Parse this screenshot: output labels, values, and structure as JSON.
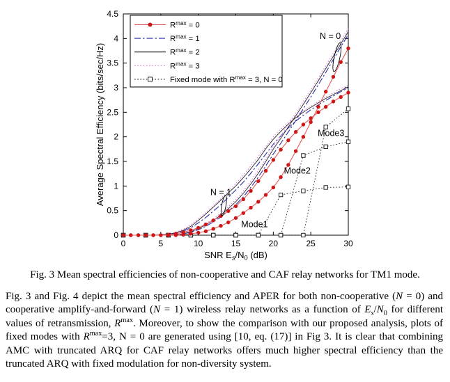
{
  "figure": {
    "caption": "Fig. 3 Mean spectral efficiencies of non-cooperative and CAF relay networks for TM1 mode."
  },
  "body_text": {
    "segments": [
      {
        "t": "Fig. 3 and Fig. 4 depict the mean spectral efficiency and APER for both non-cooperative ("
      },
      {
        "t": "N",
        "i": true
      },
      {
        "t": " = 0) and cooperative amplify-and-forward ("
      },
      {
        "t": "N",
        "i": true
      },
      {
        "t": " = 1) wireless relay networks as a function of "
      },
      {
        "t": "E",
        "i": true
      },
      {
        "t": "s",
        "sub": true,
        "i": true
      },
      {
        "t": "/"
      },
      {
        "t": "N",
        "i": true
      },
      {
        "t": "0",
        "sub": true
      },
      {
        "t": " for different values of retransmission, "
      },
      {
        "t": "R",
        "i": true
      },
      {
        "t": "max",
        "sup": true
      },
      {
        "t": ". Moreover, to show the comparison with our proposed analysis, plots of fixed modes with "
      },
      {
        "t": "R",
        "i": true
      },
      {
        "t": "max",
        "sup": true
      },
      {
        "t": "=3, N = 0 are generated using [10, eq. (17)] in Fig 3. It is clear that combining AMC with truncated ARQ for CAF relay networks offers much higher spectral efficiency than the truncated ARQ with fixed modulation for non-diversity system."
      }
    ]
  },
  "chart_data": {
    "type": "line",
    "title": "",
    "ylabel": "Average Spectral Efficiency (bits/sec/Hz)",
    "xlabel_segments": [
      {
        "t": "SNR E"
      },
      {
        "t": "s",
        "sub": true,
        "i": true
      },
      {
        "t": "/N"
      },
      {
        "t": "0",
        "sub": true
      },
      {
        "t": " (dB)"
      }
    ],
    "xlim": [
      0,
      30
    ],
    "ylim": [
      0,
      4.5
    ],
    "xticks": [
      0,
      5,
      10,
      15,
      20,
      25,
      30
    ],
    "yticks": [
      0,
      0.5,
      1,
      1.5,
      2,
      2.5,
      3,
      3.5,
      4,
      4.5
    ],
    "grid": false,
    "legend_position": "top-left",
    "colors": {
      "rmax0_line": "#e25b5b",
      "rmax0_marker": "#cf1616",
      "rmax1": "#2b2aa6",
      "rmax2": "#1c1c1c",
      "rmax3": "#df7bdf",
      "fixed": "#1c1c1c"
    },
    "legend": [
      {
        "segments": [
          {
            "t": "R"
          },
          {
            "t": "max",
            "sup": true
          },
          {
            "t": " = 0"
          }
        ],
        "color": "#e25b5b",
        "dash": "solid",
        "marker": "dot",
        "marker_color": "#cf1616"
      },
      {
        "segments": [
          {
            "t": "R"
          },
          {
            "t": "max",
            "sup": true
          },
          {
            "t": " = 1"
          }
        ],
        "color": "#2b2aa6",
        "dash": "dashdot",
        "marker": "none"
      },
      {
        "segments": [
          {
            "t": "R"
          },
          {
            "t": "max",
            "sup": true
          },
          {
            "t": " = 2"
          }
        ],
        "color": "#1c1c1c",
        "dash": "solid",
        "marker": "none"
      },
      {
        "segments": [
          {
            "t": "R"
          },
          {
            "t": "max",
            "sup": true
          },
          {
            "t": " = 3"
          }
        ],
        "color": "#df7bdf",
        "dash": "dotted",
        "marker": "none"
      },
      {
        "segments": [
          {
            "t": "Fixed mode with R"
          },
          {
            "t": "max",
            "sup": true
          },
          {
            "t": " = 3, N = 0"
          }
        ],
        "color": "#1c1c1c",
        "dash": "dotted",
        "marker": "square",
        "marker_color": "#ffffff"
      }
    ],
    "series": [
      {
        "name": "rmax1-n1",
        "label": "Rmax = 1, N = 1",
        "color": "#2b2aa6",
        "dash": "dashdot",
        "marker": "none",
        "width": 1.1,
        "x": [
          0,
          1,
          2,
          3,
          4,
          5,
          6,
          7,
          8,
          9,
          10,
          11,
          12,
          13,
          14,
          15,
          16,
          17,
          18,
          19,
          20,
          21,
          22,
          23,
          24,
          25,
          26,
          27,
          28,
          29,
          30
        ],
        "y": [
          0,
          0,
          0,
          0,
          0,
          0,
          0.02,
          0.04,
          0.08,
          0.15,
          0.25,
          0.36,
          0.49,
          0.62,
          0.77,
          0.92,
          1.08,
          1.26,
          1.45,
          1.65,
          1.85,
          2.02,
          2.18,
          2.32,
          2.44,
          2.55,
          2.65,
          2.74,
          2.83,
          2.92,
          3.0
        ]
      },
      {
        "name": "rmax2-n1",
        "label": "Rmax = 2, N = 1",
        "color": "#1c1c1c",
        "dash": "solid",
        "marker": "none",
        "width": 0.85,
        "x": [
          0,
          1,
          2,
          3,
          4,
          5,
          6,
          7,
          8,
          9,
          10,
          11,
          12,
          13,
          14,
          15,
          16,
          17,
          18,
          19,
          20,
          21,
          22,
          23,
          24,
          25,
          26,
          27,
          28,
          29,
          30
        ],
        "y": [
          0,
          0,
          0,
          0,
          0,
          0.01,
          0.02,
          0.05,
          0.1,
          0.18,
          0.3,
          0.43,
          0.57,
          0.71,
          0.86,
          1.0,
          1.17,
          1.35,
          1.54,
          1.76,
          1.95,
          2.11,
          2.26,
          2.39,
          2.5,
          2.6,
          2.69,
          2.78,
          2.86,
          2.94,
          3.02
        ]
      },
      {
        "name": "rmax3-n1",
        "label": "Rmax = 3, N = 1",
        "color": "#df7bdf",
        "dash": "dotted",
        "marker": "none",
        "width": 1.1,
        "x": [
          0,
          1,
          2,
          3,
          4,
          5,
          6,
          7,
          8,
          9,
          10,
          11,
          12,
          13,
          14,
          15,
          16,
          17,
          18,
          19,
          20,
          21,
          22,
          23,
          24,
          25,
          26,
          27,
          28,
          29,
          30
        ],
        "y": [
          0,
          0,
          0,
          0,
          0,
          0.01,
          0.03,
          0.06,
          0.12,
          0.21,
          0.33,
          0.46,
          0.6,
          0.74,
          0.89,
          1.05,
          1.22,
          1.41,
          1.6,
          1.8,
          2.0,
          2.16,
          2.3,
          2.43,
          2.53,
          2.62,
          2.72,
          2.81,
          2.9,
          2.98,
          3.05
        ]
      },
      {
        "name": "rmax1-n0",
        "label": "Rmax = 1, N = 0",
        "color": "#2b2aa6",
        "dash": "dashdot",
        "marker": "none",
        "width": 1.1,
        "x": [
          0,
          1,
          2,
          3,
          4,
          5,
          6,
          7,
          8,
          9,
          10,
          11,
          12,
          13,
          14,
          15,
          16,
          17,
          18,
          19,
          20,
          21,
          22,
          23,
          24,
          25,
          26,
          27,
          28,
          29,
          30
        ],
        "y": [
          0,
          0,
          0,
          0,
          0,
          0,
          0,
          0.01,
          0.03,
          0.06,
          0.11,
          0.18,
          0.27,
          0.37,
          0.49,
          0.62,
          0.78,
          0.97,
          1.18,
          1.41,
          1.65,
          1.87,
          2.1,
          2.33,
          2.57,
          2.81,
          3.06,
          3.31,
          3.57,
          3.83,
          4.08
        ]
      },
      {
        "name": "rmax2-n0",
        "label": "Rmax = 2, N = 0",
        "color": "#1c1c1c",
        "dash": "solid",
        "marker": "none",
        "width": 0.85,
        "x": [
          0,
          1,
          2,
          3,
          4,
          5,
          6,
          7,
          8,
          9,
          10,
          11,
          12,
          13,
          14,
          15,
          16,
          17,
          18,
          19,
          20,
          21,
          22,
          23,
          24,
          25,
          26,
          27,
          28,
          29,
          30
        ],
        "y": [
          0,
          0,
          0,
          0,
          0,
          0,
          0,
          0.01,
          0.03,
          0.07,
          0.13,
          0.21,
          0.3,
          0.41,
          0.54,
          0.68,
          0.85,
          1.04,
          1.26,
          1.5,
          1.75,
          1.97,
          2.2,
          2.43,
          2.66,
          2.9,
          3.14,
          3.39,
          3.64,
          3.89,
          4.14
        ]
      },
      {
        "name": "rmax3-n0",
        "label": "Rmax = 3, N = 0",
        "color": "#df7bdf",
        "dash": "dotted",
        "marker": "none",
        "width": 1.1,
        "x": [
          0,
          1,
          2,
          3,
          4,
          5,
          6,
          7,
          8,
          9,
          10,
          11,
          12,
          13,
          14,
          15,
          16,
          17,
          18,
          19,
          20,
          21,
          22,
          23,
          24,
          25,
          26,
          27,
          28,
          29,
          30
        ],
        "y": [
          0,
          0,
          0,
          0,
          0,
          0,
          0,
          0.01,
          0.04,
          0.08,
          0.15,
          0.23,
          0.33,
          0.45,
          0.58,
          0.72,
          0.9,
          1.1,
          1.32,
          1.55,
          1.8,
          2.02,
          2.25,
          2.48,
          2.72,
          2.95,
          3.2,
          3.45,
          3.7,
          3.95,
          4.2
        ]
      },
      {
        "name": "fixed-mode1",
        "label": "Fixed Mode1",
        "color": "#1c1c1c",
        "dash": "dotted",
        "marker": "square",
        "width": 0.9,
        "x": [
          0,
          3,
          6,
          9,
          12,
          15,
          18,
          21,
          24,
          27,
          30
        ],
        "y": [
          0,
          0,
          0,
          0,
          0,
          0,
          0,
          0.82,
          0.9,
          0.97,
          0.98
        ]
      },
      {
        "name": "fixed-mode2",
        "label": "Fixed Mode2",
        "color": "#1c1c1c",
        "dash": "dotted",
        "marker": "square",
        "width": 0.9,
        "x": [
          0,
          3,
          6,
          9,
          12,
          15,
          18,
          21,
          24,
          27,
          30
        ],
        "y": [
          0,
          0,
          0,
          0,
          0,
          0,
          0,
          0,
          1.62,
          1.8,
          1.9
        ]
      },
      {
        "name": "fixed-mode3",
        "label": "Fixed Mode3",
        "color": "#1c1c1c",
        "dash": "dotted",
        "marker": "square",
        "width": 0.9,
        "x": [
          0,
          3,
          6,
          9,
          12,
          15,
          18,
          21,
          24,
          27,
          30
        ],
        "y": [
          0,
          0,
          0,
          0,
          0,
          0,
          0,
          0,
          0,
          2.2,
          2.57
        ]
      },
      {
        "name": "rmax0-n1",
        "label": "Rmax = 0, N = 1",
        "color": "#e25b5b",
        "dash": "solid",
        "marker": "dot",
        "marker_color": "#cf1616",
        "width": 1.1,
        "x": [
          0,
          1,
          2,
          3,
          4,
          5,
          6,
          7,
          8,
          9,
          10,
          11,
          12,
          13,
          14,
          15,
          16,
          17,
          18,
          19,
          20,
          21,
          22,
          23,
          24,
          25,
          26,
          27,
          28,
          29,
          30
        ],
        "y": [
          0,
          0,
          0,
          0,
          0,
          0,
          0.01,
          0.03,
          0.06,
          0.1,
          0.15,
          0.22,
          0.3,
          0.39,
          0.49,
          0.59,
          0.73,
          0.9,
          1.1,
          1.31,
          1.53,
          1.74,
          1.93,
          2.1,
          2.25,
          2.38,
          2.5,
          2.61,
          2.72,
          2.81,
          2.9
        ]
      },
      {
        "name": "rmax0-n0",
        "label": "Rmax = 0, N = 0",
        "color": "#e25b5b",
        "dash": "solid",
        "marker": "dot",
        "marker_color": "#cf1616",
        "width": 1.1,
        "x": [
          0,
          1,
          2,
          3,
          4,
          5,
          6,
          7,
          8,
          9,
          10,
          11,
          12,
          13,
          14,
          15,
          16,
          17,
          18,
          19,
          20,
          21,
          22,
          23,
          24,
          25,
          26,
          27,
          28,
          29,
          30
        ],
        "y": [
          0,
          0,
          0,
          0,
          0,
          0,
          0,
          0,
          0.01,
          0.03,
          0.05,
          0.08,
          0.13,
          0.19,
          0.26,
          0.35,
          0.45,
          0.56,
          0.68,
          0.82,
          0.97,
          1.18,
          1.43,
          1.71,
          2.0,
          2.3,
          2.61,
          2.92,
          3.22,
          3.52,
          3.8
        ]
      }
    ],
    "annotations": [
      {
        "text": "N = 0",
        "x": 27.6,
        "y": 4.05
      },
      {
        "text": "N = 1",
        "x": 13.0,
        "y": 0.87
      },
      {
        "text": "Mode1",
        "x": 17.5,
        "y": 0.22
      },
      {
        "text": "Mode2",
        "x": 23.2,
        "y": 1.31
      },
      {
        "text": "Mode3",
        "x": 27.7,
        "y": 2.07
      }
    ],
    "ellipses": [
      {
        "cx": 28.5,
        "cy": 3.62,
        "rx": 0.38,
        "ry": 0.3,
        "rot": 12
      },
      {
        "cx": 13.4,
        "cy": 0.6,
        "rx": 0.28,
        "ry": 0.21,
        "rot": 10
      }
    ]
  }
}
